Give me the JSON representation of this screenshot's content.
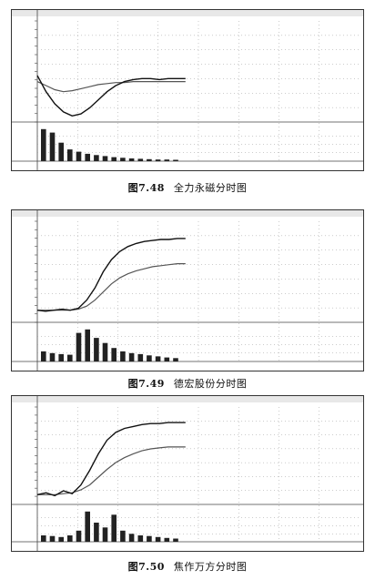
{
  "figures": [
    {
      "number": "图7.48",
      "name": "全力永磁分时图",
      "stock": "全力永磁",
      "price_series": [
        0.46,
        0.3,
        0.18,
        0.1,
        0.06,
        0.08,
        0.14,
        0.22,
        0.3,
        0.36,
        0.4,
        0.42,
        0.43,
        0.43,
        0.42,
        0.43,
        0.43,
        0.43
      ],
      "avg_series": [
        0.4,
        0.36,
        0.32,
        0.3,
        0.31,
        0.33,
        0.35,
        0.37,
        0.38,
        0.39,
        0.39,
        0.4,
        0.4,
        0.4,
        0.4,
        0.4,
        0.4,
        0.4
      ],
      "volume_series": [
        0.95,
        0.85,
        0.55,
        0.35,
        0.28,
        0.22,
        0.18,
        0.15,
        0.12,
        0.1,
        0.08,
        0.07,
        0.06,
        0.05,
        0.05,
        0.04
      ]
    },
    {
      "number": "图7.49",
      "name": "德宏股份分时图",
      "stock": "德宏股份",
      "price_series": [
        0.12,
        0.11,
        0.12,
        0.13,
        0.12,
        0.14,
        0.22,
        0.34,
        0.5,
        0.62,
        0.7,
        0.75,
        0.78,
        0.8,
        0.81,
        0.82,
        0.82,
        0.83,
        0.83
      ],
      "avg_series": [
        0.12,
        0.12,
        0.12,
        0.12,
        0.12,
        0.13,
        0.16,
        0.22,
        0.3,
        0.38,
        0.44,
        0.48,
        0.51,
        0.53,
        0.55,
        0.56,
        0.57,
        0.58,
        0.58
      ],
      "volume_series": [
        0.3,
        0.25,
        0.22,
        0.2,
        0.85,
        0.95,
        0.7,
        0.55,
        0.4,
        0.3,
        0.25,
        0.22,
        0.18,
        0.15,
        0.12,
        0.1
      ]
    },
    {
      "number": "图7.50",
      "name": "焦作万方分时图",
      "stock": "焦作万方",
      "price_series": [
        0.1,
        0.12,
        0.09,
        0.14,
        0.11,
        0.2,
        0.35,
        0.52,
        0.66,
        0.74,
        0.78,
        0.8,
        0.82,
        0.83,
        0.83,
        0.84,
        0.84,
        0.84
      ],
      "avg_series": [
        0.1,
        0.1,
        0.1,
        0.11,
        0.12,
        0.15,
        0.2,
        0.28,
        0.36,
        0.43,
        0.48,
        0.52,
        0.55,
        0.57,
        0.58,
        0.59,
        0.59,
        0.59
      ],
      "volume_series": [
        0.2,
        0.18,
        0.15,
        0.2,
        0.35,
        0.95,
        0.6,
        0.45,
        0.85,
        0.35,
        0.25,
        0.2,
        0.18,
        0.15,
        0.12,
        0.1
      ]
    }
  ]
}
